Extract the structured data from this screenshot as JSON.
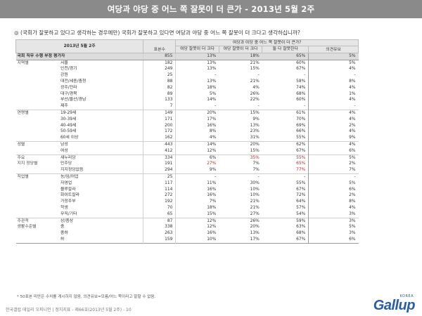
{
  "title": "여당과 야당 중 어느 쪽 잘못이 더 큰가 - 2013년 5월 2주",
  "question": "◎ (국회가 잘못하고 있다고 생각하는 경우에만) 국회가 잘못하고 있다면 여당과 야당 중 어느 쪽 잘못이 더 크다고 생각하십니까?",
  "header": {
    "date": "2013년 5월 2주",
    "sample": "표본수",
    "group": "여당과 야당 중 어느 쪽 잘못이 더 큰가?",
    "c1": "여당 잘못이 더 크다",
    "c2": "야당 잘못이 더 크다",
    "c3": "둘 다 잘못한다",
    "c4": "의견유보"
  },
  "rows": [
    {
      "group": "국회 직무 수행 부정 평가자",
      "label": "",
      "n": "855",
      "a": "13%",
      "b": "18%",
      "c": "65%",
      "d": "5%",
      "total": true
    },
    {
      "group": "지역별",
      "label": "서울",
      "n": "182",
      "a": "13%",
      "b": "21%",
      "c": "60%",
      "d": "5%",
      "sep": true
    },
    {
      "group": "",
      "label": "인천/경기",
      "n": "249",
      "a": "13%",
      "b": "15%",
      "c": "67%",
      "d": "4%"
    },
    {
      "group": "",
      "label": "강원",
      "n": "25",
      "a": "-",
      "b": "-",
      "c": "-",
      "d": "-"
    },
    {
      "group": "",
      "label": "대전/세종/충청",
      "n": "88",
      "a": "13%",
      "b": "21%",
      "c": "58%",
      "d": "8%"
    },
    {
      "group": "",
      "label": "광주/전라",
      "n": "82",
      "a": "18%",
      "b": "4%",
      "c": "74%",
      "d": "4%"
    },
    {
      "group": "",
      "label": "대구/경북",
      "n": "89",
      "a": "5%",
      "b": "26%",
      "c": "68%",
      "d": "1%"
    },
    {
      "group": "",
      "label": "부산/울산/경남",
      "n": "133",
      "a": "14%",
      "b": "22%",
      "c": "60%",
      "d": "4%"
    },
    {
      "group": "",
      "label": "제주",
      "n": "7",
      "a": "-",
      "b": "-",
      "c": "-",
      "d": "-"
    },
    {
      "group": "연령별",
      "label": "19-29세",
      "n": "149",
      "a": "20%",
      "b": "15%",
      "c": "61%",
      "d": "4%",
      "sep": true
    },
    {
      "group": "",
      "label": "30-39세",
      "n": "171",
      "a": "17%",
      "b": "9%",
      "c": "70%",
      "d": "4%"
    },
    {
      "group": "",
      "label": "40-49세",
      "n": "200",
      "a": "16%",
      "b": "13%",
      "c": "69%",
      "d": "2%"
    },
    {
      "group": "",
      "label": "50-59세",
      "n": "172",
      "a": "8%",
      "b": "23%",
      "c": "66%",
      "d": "4%"
    },
    {
      "group": "",
      "label": "60세 이상",
      "n": "162",
      "a": "4%",
      "b": "31%",
      "c": "55%",
      "d": "9%"
    },
    {
      "group": "성별",
      "label": "남성",
      "n": "443",
      "a": "14%",
      "b": "20%",
      "c": "62%",
      "d": "4%",
      "sep": true
    },
    {
      "group": "",
      "label": "여성",
      "n": "412",
      "a": "12%",
      "b": "15%",
      "c": "67%",
      "d": "6%"
    },
    {
      "group": "주요",
      "label": "새누리당",
      "n": "334",
      "a": "6%",
      "b": "35%",
      "c": "55%",
      "d": "5%",
      "sep": true,
      "red": "bc"
    },
    {
      "group": "지지 정당별",
      "label": "민주당",
      "n": "191",
      "a": "27%",
      "b": "7%",
      "c": "65%",
      "d": "2%",
      "red": "ac"
    },
    {
      "group": "",
      "label": "지지정당없음",
      "n": "294",
      "a": "9%",
      "b": "7%",
      "c": "77%",
      "d": "7%",
      "red": "c"
    },
    {
      "group": "직업별",
      "label": "농/임/어업",
      "n": "25",
      "a": "-",
      "b": "-",
      "c": "-",
      "d": "-",
      "sep": true
    },
    {
      "group": "",
      "label": "자영업",
      "n": "117",
      "a": "11%",
      "b": "30%",
      "c": "55%",
      "d": "5%"
    },
    {
      "group": "",
      "label": "블루칼라",
      "n": "114",
      "a": "16%",
      "b": "10%",
      "c": "67%",
      "d": "6%"
    },
    {
      "group": "",
      "label": "화이트칼라",
      "n": "272",
      "a": "16%",
      "b": "10%",
      "c": "72%",
      "d": "2%"
    },
    {
      "group": "",
      "label": "가정주부",
      "n": "192",
      "a": "7%",
      "b": "21%",
      "c": "64%",
      "d": "8%"
    },
    {
      "group": "",
      "label": "학생",
      "n": "70",
      "a": "18%",
      "b": "21%",
      "c": "57%",
      "d": "4%"
    },
    {
      "group": "",
      "label": "무직/기타",
      "n": "65",
      "a": "15%",
      "b": "27%",
      "c": "54%",
      "d": "3%"
    },
    {
      "group": "주관적",
      "label": "상/중상",
      "n": "87",
      "a": "12%",
      "b": "26%",
      "c": "59%",
      "d": "3%",
      "sep": true
    },
    {
      "group": "생활수준별",
      "label": "중",
      "n": "338",
      "a": "12%",
      "b": "20%",
      "c": "63%",
      "d": "5%"
    },
    {
      "group": "",
      "label": "중하",
      "n": "263",
      "a": "16%",
      "b": "13%",
      "c": "68%",
      "d": "3%"
    },
    {
      "group": "",
      "label": "하",
      "n": "159",
      "a": "10%",
      "b": "17%",
      "c": "67%",
      "d": "6%"
    }
  ],
  "footnote": "* 50표본 미만은 수치를 게시하지 않음, 의견유보=모름/어느 쪽이라고 말할 수 없음.",
  "source": "한국갤럽 데일리 오피니언 | 정치지표 - 제66호(2013년 5월 2주) - 10",
  "logo": "Gallup",
  "logo_korea": "KOREA",
  "colors": {
    "titlebar": "#8a8a8a",
    "highlight": "#d11f1f",
    "logo": "#2a5da8"
  }
}
